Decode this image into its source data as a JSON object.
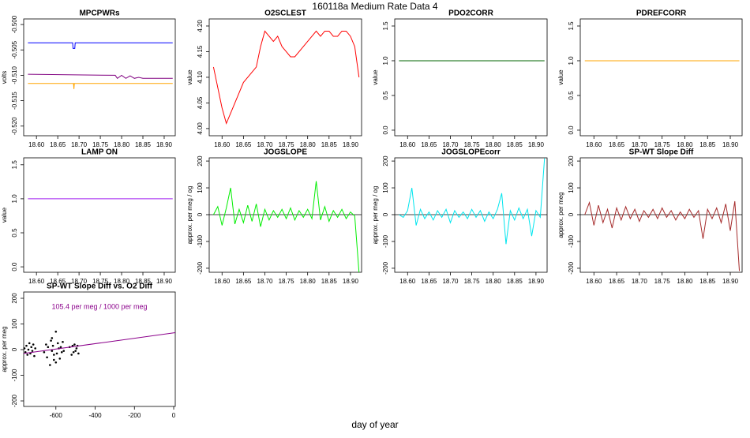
{
  "title": "160118a   Medium Rate Data 4",
  "xlabel": "day of year",
  "chart_data": [
    {
      "type": "line",
      "title": "MPCPWRs",
      "ylabel": "volts",
      "xlim": [
        18.57,
        18.926
      ],
      "xticks": [
        {
          "value": 18.6,
          "label": "18.60"
        },
        18.65,
        {
          "value": 18.7,
          "label": "18.70"
        },
        18.75,
        {
          "value": 18.8,
          "label": "18.80"
        },
        18.85,
        {
          "value": 18.9,
          "label": "18.90"
        }
      ],
      "ylim": [
        -0.5219,
        -0.4989
      ],
      "yticks": [
        {
          "value": -0.5,
          "label": "-0.500"
        },
        -0.505,
        {
          "value": -0.51,
          "label": "-0.510"
        },
        -0.515,
        {
          "value": -0.52,
          "label": "-0.520"
        }
      ],
      "series": [
        {
          "color": "#0000ff",
          "x": [
            18.58,
            18.685,
            18.686,
            18.69,
            18.691,
            18.92
          ],
          "values": [
            -0.5036,
            -0.5036,
            -0.5047,
            -0.5047,
            -0.5036,
            -0.5036
          ]
        },
        {
          "color": "#800080",
          "x": [
            18.58,
            18.785,
            18.79,
            18.8,
            18.81,
            18.82,
            18.83,
            18.84,
            18.85,
            18.92
          ],
          "values": [
            -0.5098,
            -0.51,
            -0.5106,
            -0.51,
            -0.5106,
            -0.5101,
            -0.5106,
            -0.5104,
            -0.5106,
            -0.5106
          ]
        },
        {
          "color": "#ffa500",
          "x": [
            18.58,
            18.687,
            18.688,
            18.689,
            18.92
          ],
          "values": [
            -0.5116,
            -0.5116,
            -0.5127,
            -0.5116,
            -0.5116
          ]
        }
      ]
    },
    {
      "type": "line",
      "title": "O2SCLEST",
      "ylabel": "value",
      "xlim": [
        18.57,
        18.926
      ],
      "xticks": [
        {
          "value": 18.6,
          "label": "18.60"
        },
        18.65,
        {
          "value": 18.7,
          "label": "18.70"
        },
        18.75,
        {
          "value": 18.8,
          "label": "18.80"
        },
        18.85,
        {
          "value": 18.9,
          "label": "18.90"
        }
      ],
      "ylim": [
        3.986,
        4.2138
      ],
      "yticks": [
        {
          "value": 4,
          "label": "4.00"
        },
        4.05,
        {
          "value": 4.1,
          "label": "4.10"
        },
        4.15,
        {
          "value": 4.2,
          "label": "4.20"
        }
      ],
      "x": [
        18.58,
        18.59,
        18.6,
        18.61,
        18.62,
        18.63,
        18.64,
        18.65,
        18.66,
        18.67,
        18.68,
        18.69,
        18.7,
        18.71,
        18.72,
        18.73,
        18.74,
        18.75,
        18.76,
        18.77,
        18.78,
        18.79,
        18.8,
        18.81,
        18.82,
        18.83,
        18.84,
        18.85,
        18.86,
        18.87,
        18.88,
        18.89,
        18.9,
        18.91,
        18.92
      ],
      "series": [
        {
          "color": "#ff0000",
          "values": [
            4.12,
            4.08,
            4.04,
            4.01,
            4.03,
            4.05,
            4.07,
            4.09,
            4.1,
            4.11,
            4.12,
            4.16,
            4.19,
            4.18,
            4.17,
            4.18,
            4.16,
            4.15,
            4.14,
            4.14,
            4.15,
            4.16,
            4.17,
            4.18,
            4.19,
            4.18,
            4.19,
            4.19,
            4.18,
            4.18,
            4.19,
            4.19,
            4.18,
            4.16,
            4.1
          ]
        }
      ]
    },
    {
      "type": "line",
      "title": "PDO2CORR",
      "ylabel": "value",
      "xlim": [
        18.57,
        18.926
      ],
      "xticks": [
        {
          "value": 18.6,
          "label": "18.60"
        },
        18.65,
        {
          "value": 18.7,
          "label": "18.70"
        },
        18.75,
        {
          "value": 18.8,
          "label": "18.80"
        },
        18.85,
        {
          "value": 18.9,
          "label": "18.90"
        }
      ],
      "ylim": [
        -0.08,
        1.602
      ],
      "yticks": [
        {
          "value": 0,
          "label": "0.0"
        },
        0.5,
        {
          "value": 1,
          "label": "1.0"
        },
        1.5
      ],
      "series": [
        {
          "color": "#006400",
          "x": [
            18.58,
            18.92
          ],
          "values": [
            1,
            1
          ]
        }
      ]
    },
    {
      "type": "line",
      "title": "PDREFCORR",
      "ylabel": "value",
      "xlim": [
        18.57,
        18.926
      ],
      "xticks": [
        {
          "value": 18.6,
          "label": "18.60"
        },
        18.65,
        {
          "value": 18.7,
          "label": "18.70"
        },
        18.75,
        {
          "value": 18.8,
          "label": "18.80"
        },
        18.85,
        {
          "value": 18.9,
          "label": "18.90"
        }
      ],
      "ylim": [
        -0.08,
        1.602
      ],
      "yticks": [
        {
          "value": 0,
          "label": "0.0"
        },
        0.5,
        {
          "value": 1,
          "label": "1.0"
        },
        1.5
      ],
      "series": [
        {
          "color": "#ffa500",
          "x": [
            18.58,
            18.92
          ],
          "values": [
            1,
            1
          ]
        }
      ]
    },
    {
      "type": "line",
      "title": "LAMP ON",
      "ylabel": "value",
      "xlim": [
        18.57,
        18.926
      ],
      "xticks": [
        {
          "value": 18.6,
          "label": "18.60"
        },
        18.65,
        {
          "value": 18.7,
          "label": "18.70"
        },
        18.75,
        {
          "value": 18.8,
          "label": "18.80"
        },
        18.85,
        {
          "value": 18.9,
          "label": "18.90"
        }
      ],
      "ylim": [
        -0.08,
        1.602
      ],
      "yticks": [
        {
          "value": 0,
          "label": "0.0"
        },
        0.5,
        {
          "value": 1,
          "label": "1.0"
        },
        1.5
      ],
      "series": [
        {
          "color": "#a020f0",
          "x": [
            18.58,
            18.92
          ],
          "values": [
            1,
            1
          ]
        }
      ]
    },
    {
      "type": "line",
      "title": "JOGSLOPE",
      "ylabel": "approx. per meg / og",
      "xlim": [
        18.57,
        18.926
      ],
      "xticks": [
        {
          "value": 18.6,
          "label": "18.60"
        },
        18.65,
        {
          "value": 18.7,
          "label": "18.70"
        },
        18.75,
        {
          "value": 18.8,
          "label": "18.80"
        },
        18.85,
        {
          "value": 18.9,
          "label": "18.90"
        }
      ],
      "ylim": [
        -215,
        212
      ],
      "yticks": [
        -200,
        -100,
        0,
        100,
        200
      ],
      "hline": 0,
      "x": [
        18.58,
        18.59,
        18.6,
        18.61,
        18.62,
        18.63,
        18.64,
        18.65,
        18.66,
        18.67,
        18.68,
        18.69,
        18.7,
        18.71,
        18.72,
        18.73,
        18.74,
        18.75,
        18.76,
        18.77,
        18.78,
        18.79,
        18.8,
        18.81,
        18.82,
        18.83,
        18.84,
        18.85,
        18.86,
        18.87,
        18.88,
        18.89,
        18.9,
        18.91,
        18.92
      ],
      "series": [
        {
          "color": "#00ee00",
          "values": [
            0,
            30,
            -40,
            25,
            100,
            -35,
            20,
            -30,
            35,
            -25,
            40,
            -45,
            20,
            -20,
            15,
            -10,
            20,
            -15,
            25,
            -20,
            15,
            -10,
            20,
            -15,
            125,
            -20,
            30,
            -25,
            15,
            -10,
            20,
            -15,
            10,
            -5,
            -215
          ]
        }
      ]
    },
    {
      "type": "line",
      "title": "JOGSLOPEcorr",
      "ylabel": "approx. per meg / og",
      "xlim": [
        18.57,
        18.926
      ],
      "xticks": [
        {
          "value": 18.6,
          "label": "18.60"
        },
        18.65,
        {
          "value": 18.7,
          "label": "18.70"
        },
        18.75,
        {
          "value": 18.8,
          "label": "18.80"
        },
        18.85,
        {
          "value": 18.9,
          "label": "18.90"
        }
      ],
      "ylim": [
        -215,
        212
      ],
      "yticks": [
        -200,
        -100,
        0,
        100,
        200
      ],
      "hline": 0,
      "x": [
        18.58,
        18.59,
        18.6,
        18.61,
        18.62,
        18.63,
        18.64,
        18.65,
        18.66,
        18.67,
        18.68,
        18.69,
        18.7,
        18.71,
        18.72,
        18.73,
        18.74,
        18.75,
        18.76,
        18.77,
        18.78,
        18.79,
        18.8,
        18.81,
        18.82,
        18.83,
        18.84,
        18.85,
        18.86,
        18.87,
        18.88,
        18.89,
        18.9,
        18.91,
        18.92
      ],
      "series": [
        {
          "color": "#00e5ee",
          "values": [
            0,
            -10,
            15,
            100,
            -40,
            20,
            -15,
            10,
            -20,
            15,
            -10,
            20,
            -30,
            15,
            -10,
            10,
            -15,
            20,
            -10,
            15,
            -25,
            10,
            -15,
            20,
            80,
            -110,
            15,
            -20,
            25,
            -15,
            20,
            -80,
            15,
            -10,
            210
          ]
        }
      ]
    },
    {
      "type": "line",
      "title": "SP-WT Slope Diff",
      "ylabel": "approx. per meg",
      "xlim": [
        18.57,
        18.926
      ],
      "xticks": [
        {
          "value": 18.6,
          "label": "18.60"
        },
        18.65,
        {
          "value": 18.7,
          "label": "18.70"
        },
        18.75,
        {
          "value": 18.8,
          "label": "18.80"
        },
        18.85,
        {
          "value": 18.9,
          "label": "18.90"
        }
      ],
      "ylim": [
        -215,
        212
      ],
      "yticks": [
        -200,
        -100,
        0,
        100,
        200
      ],
      "hline": 0,
      "x": [
        18.58,
        18.59,
        18.6,
        18.61,
        18.62,
        18.63,
        18.64,
        18.65,
        18.66,
        18.67,
        18.68,
        18.69,
        18.7,
        18.71,
        18.72,
        18.73,
        18.74,
        18.75,
        18.76,
        18.77,
        18.78,
        18.79,
        18.8,
        18.81,
        18.82,
        18.83,
        18.84,
        18.85,
        18.86,
        18.87,
        18.88,
        18.89,
        18.9,
        18.91,
        18.92
      ],
      "series": [
        {
          "color": "#a52a2a",
          "values": [
            0,
            45,
            -40,
            35,
            -30,
            20,
            -50,
            25,
            -20,
            30,
            -15,
            20,
            -25,
            15,
            -10,
            20,
            -15,
            25,
            -10,
            15,
            -20,
            10,
            -15,
            20,
            -10,
            15,
            -90,
            20,
            -15,
            25,
            -30,
            40,
            -60,
            50,
            -210
          ]
        }
      ]
    },
    {
      "type": "scatter",
      "title": "SP-WT Slope Diff vs. O2 Diff",
      "ylabel": "approx. per meg",
      "annotation": "105.4 per meg / 1000 per meg",
      "annotation_color": "#8b008b",
      "xlim": [
        -764,
        8
      ],
      "xticks": [
        -600,
        -400,
        -200,
        0
      ],
      "ylim": [
        -221.5,
        224.6
      ],
      "yticks": [
        -200,
        -100,
        0,
        100,
        200
      ],
      "series": [
        {
          "color": "#000000",
          "x": [
            -760,
            -755,
            -750,
            -745,
            -740,
            -735,
            -730,
            -725,
            -720,
            -715,
            -710,
            -705,
            -660,
            -650,
            -645,
            -640,
            -630,
            -625,
            -620,
            -615,
            -610,
            -600,
            -595,
            -590,
            -585,
            -580,
            -575,
            -570,
            -565,
            -560,
            -620,
            -610,
            -600,
            -530,
            -520,
            -515,
            -510,
            -505,
            -500,
            -495,
            -490,
            -485
          ],
          "values": [
            5,
            -10,
            15,
            -20,
            0,
            25,
            -15,
            10,
            -5,
            20,
            -25,
            5,
            -10,
            20,
            -30,
            10,
            -60,
            35,
            -5,
            15,
            -20,
            70,
            -15,
            25,
            5,
            -35,
            10,
            -10,
            30,
            -5,
            45,
            -40,
            -50,
            10,
            -20,
            15,
            -10,
            20,
            -5,
            5,
            15,
            -15
          ]
        },
        {
          "type": "line",
          "color": "#8b008b",
          "x": [
            -764,
            8
          ],
          "values": [
            -15,
            66
          ]
        }
      ]
    }
  ]
}
